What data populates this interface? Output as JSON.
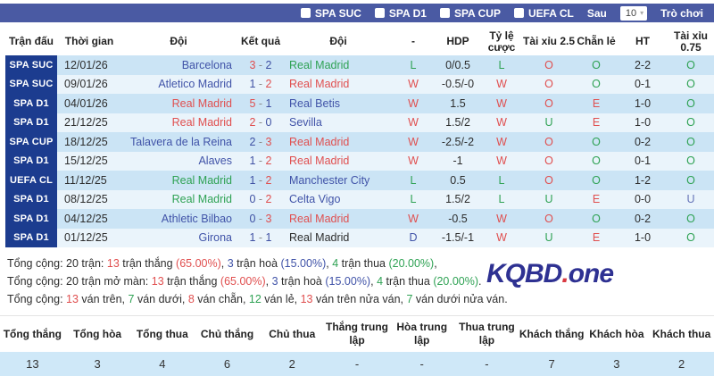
{
  "palette": {
    "red": "#e04f4f",
    "green": "#2fa254",
    "blue": "#4053a8",
    "navy": "#3f51a3",
    "dark": "#2d2d2d",
    "slate": "#6674b8",
    "gray": "#8a8a8a"
  },
  "topbar": {
    "filters": [
      {
        "label": "SPA SUC"
      },
      {
        "label": "SPA D1"
      },
      {
        "label": "SPA CUP"
      },
      {
        "label": "UEFA CL"
      }
    ],
    "after_label": "Sau",
    "dropdown_value": "10",
    "game_label": "Trò chơi"
  },
  "table": {
    "headers": [
      "Trận đấu",
      "Thời gian",
      "Đội",
      "Kết quả",
      "Đội",
      "-",
      "HDP",
      "Tỷ lệ cược",
      "Tài xỉu 2.5",
      "Chẵn lẻ",
      "HT",
      "Tài xỉu 0.75"
    ],
    "rows": [
      {
        "league": "SPA SUC",
        "date": "12/01/26",
        "home": {
          "name": "Barcelona",
          "color": "blue"
        },
        "score": {
          "h": "3",
          "hc": "red",
          "a": "2",
          "ac": "navy"
        },
        "away": {
          "name": "Real Madrid",
          "color": "green"
        },
        "result": {
          "t": "L",
          "c": "green"
        },
        "hdp": "0/0.5",
        "odds": {
          "t": "L",
          "c": "green"
        },
        "ou25": {
          "t": "O",
          "c": "red"
        },
        "oe": {
          "t": "O",
          "c": "green"
        },
        "ht": "2-2",
        "ou075": {
          "t": "O",
          "c": "green"
        }
      },
      {
        "league": "SPA SUC",
        "date": "09/01/26",
        "home": {
          "name": "Atletico Madrid",
          "color": "blue"
        },
        "score": {
          "h": "1",
          "hc": "navy",
          "a": "2",
          "ac": "red"
        },
        "away": {
          "name": "Real Madrid",
          "color": "red"
        },
        "result": {
          "t": "W",
          "c": "red"
        },
        "hdp": "-0.5/-0",
        "odds": {
          "t": "W",
          "c": "red"
        },
        "ou25": {
          "t": "O",
          "c": "red"
        },
        "oe": {
          "t": "O",
          "c": "green"
        },
        "ht": "0-1",
        "ou075": {
          "t": "O",
          "c": "green"
        }
      },
      {
        "league": "SPA D1",
        "date": "04/01/26",
        "home": {
          "name": "Real Madrid",
          "color": "red"
        },
        "score": {
          "h": "5",
          "hc": "red",
          "a": "1",
          "ac": "navy"
        },
        "away": {
          "name": "Real Betis",
          "color": "blue"
        },
        "result": {
          "t": "W",
          "c": "red"
        },
        "hdp": "1.5",
        "odds": {
          "t": "W",
          "c": "red"
        },
        "ou25": {
          "t": "O",
          "c": "red"
        },
        "oe": {
          "t": "E",
          "c": "red"
        },
        "ht": "1-0",
        "ou075": {
          "t": "O",
          "c": "green"
        }
      },
      {
        "league": "SPA D1",
        "date": "21/12/25",
        "home": {
          "name": "Real Madrid",
          "color": "red"
        },
        "score": {
          "h": "2",
          "hc": "red",
          "a": "0",
          "ac": "navy"
        },
        "away": {
          "name": "Sevilla",
          "color": "blue"
        },
        "result": {
          "t": "W",
          "c": "red"
        },
        "hdp": "1.5/2",
        "odds": {
          "t": "W",
          "c": "red"
        },
        "ou25": {
          "t": "U",
          "c": "green"
        },
        "oe": {
          "t": "E",
          "c": "red"
        },
        "ht": "1-0",
        "ou075": {
          "t": "O",
          "c": "green"
        }
      },
      {
        "league": "SPA CUP",
        "date": "18/12/25",
        "home": {
          "name": "Talavera de la Reina",
          "color": "blue"
        },
        "score": {
          "h": "2",
          "hc": "navy",
          "a": "3",
          "ac": "red"
        },
        "away": {
          "name": "Real Madrid",
          "color": "red"
        },
        "result": {
          "t": "W",
          "c": "red"
        },
        "hdp": "-2.5/-2",
        "odds": {
          "t": "W",
          "c": "red"
        },
        "ou25": {
          "t": "O",
          "c": "red"
        },
        "oe": {
          "t": "O",
          "c": "green"
        },
        "ht": "0-2",
        "ou075": {
          "t": "O",
          "c": "green"
        }
      },
      {
        "league": "SPA D1",
        "date": "15/12/25",
        "home": {
          "name": "Alaves",
          "color": "blue"
        },
        "score": {
          "h": "1",
          "hc": "navy",
          "a": "2",
          "ac": "red"
        },
        "away": {
          "name": "Real Madrid",
          "color": "red"
        },
        "result": {
          "t": "W",
          "c": "red"
        },
        "hdp": "-1",
        "odds": {
          "t": "W",
          "c": "red"
        },
        "ou25": {
          "t": "O",
          "c": "red"
        },
        "oe": {
          "t": "O",
          "c": "green"
        },
        "ht": "0-1",
        "ou075": {
          "t": "O",
          "c": "green"
        }
      },
      {
        "league": "UEFA CL",
        "date": "11/12/25",
        "home": {
          "name": "Real Madrid",
          "color": "green"
        },
        "score": {
          "h": "1",
          "hc": "navy",
          "a": "2",
          "ac": "red"
        },
        "away": {
          "name": "Manchester City",
          "color": "blue"
        },
        "result": {
          "t": "L",
          "c": "green"
        },
        "hdp": "0.5",
        "odds": {
          "t": "L",
          "c": "green"
        },
        "ou25": {
          "t": "O",
          "c": "red"
        },
        "oe": {
          "t": "O",
          "c": "green"
        },
        "ht": "1-2",
        "ou075": {
          "t": "O",
          "c": "green"
        }
      },
      {
        "league": "SPA D1",
        "date": "08/12/25",
        "home": {
          "name": "Real Madrid",
          "color": "green"
        },
        "score": {
          "h": "0",
          "hc": "navy",
          "a": "2",
          "ac": "red"
        },
        "away": {
          "name": "Celta Vigo",
          "color": "blue"
        },
        "result": {
          "t": "L",
          "c": "green"
        },
        "hdp": "1.5/2",
        "odds": {
          "t": "L",
          "c": "green"
        },
        "ou25": {
          "t": "U",
          "c": "green"
        },
        "oe": {
          "t": "E",
          "c": "red"
        },
        "ht": "0-0",
        "ou075": {
          "t": "U",
          "c": "slate"
        }
      },
      {
        "league": "SPA D1",
        "date": "04/12/25",
        "home": {
          "name": "Athletic Bilbao",
          "color": "blue"
        },
        "score": {
          "h": "0",
          "hc": "navy",
          "a": "3",
          "ac": "red"
        },
        "away": {
          "name": "Real Madrid",
          "color": "red"
        },
        "result": {
          "t": "W",
          "c": "red"
        },
        "hdp": "-0.5",
        "odds": {
          "t": "W",
          "c": "red"
        },
        "ou25": {
          "t": "O",
          "c": "red"
        },
        "oe": {
          "t": "O",
          "c": "green"
        },
        "ht": "0-2",
        "ou075": {
          "t": "O",
          "c": "green"
        }
      },
      {
        "league": "SPA D1",
        "date": "01/12/25",
        "home": {
          "name": "Girona",
          "color": "blue"
        },
        "score": {
          "h": "1",
          "hc": "navy",
          "a": "1",
          "ac": "navy"
        },
        "away": {
          "name": "Real Madrid",
          "color": "dark"
        },
        "result": {
          "t": "D",
          "c": "blue"
        },
        "hdp": "-1.5/-1",
        "odds": {
          "t": "W",
          "c": "red"
        },
        "ou25": {
          "t": "U",
          "c": "green"
        },
        "oe": {
          "t": "E",
          "c": "red"
        },
        "ht": "1-0",
        "ou075": {
          "t": "O",
          "c": "green"
        }
      }
    ]
  },
  "summary": {
    "lines": [
      {
        "segments": [
          {
            "t": "Tổng cộng: 20 trận: ",
            "c": "dark"
          },
          {
            "t": "13",
            "c": "red"
          },
          {
            "t": " trận thắng ",
            "c": "dark"
          },
          {
            "t": "(65.00%)",
            "c": "red"
          },
          {
            "t": ", ",
            "c": "dark"
          },
          {
            "t": "3",
            "c": "blue"
          },
          {
            "t": " trận hoà ",
            "c": "dark"
          },
          {
            "t": "(15.00%)",
            "c": "blue"
          },
          {
            "t": ", ",
            "c": "dark"
          },
          {
            "t": "4",
            "c": "green"
          },
          {
            "t": " trận thua ",
            "c": "dark"
          },
          {
            "t": "(20.00%)",
            "c": "green"
          },
          {
            "t": ",",
            "c": "dark"
          }
        ]
      },
      {
        "segments": [
          {
            "t": "Tổng cộng: 20 trận mở màn: ",
            "c": "dark"
          },
          {
            "t": "13",
            "c": "red"
          },
          {
            "t": " trận thắng ",
            "c": "dark"
          },
          {
            "t": "(65.00%)",
            "c": "red"
          },
          {
            "t": ", ",
            "c": "dark"
          },
          {
            "t": "3",
            "c": "blue"
          },
          {
            "t": " trận hoà ",
            "c": "dark"
          },
          {
            "t": "(15.00%)",
            "c": "blue"
          },
          {
            "t": ", ",
            "c": "dark"
          },
          {
            "t": "4",
            "c": "green"
          },
          {
            "t": " trận thua ",
            "c": "dark"
          },
          {
            "t": "(20.00%)",
            "c": "green"
          },
          {
            "t": ".",
            "c": "dark"
          }
        ]
      },
      {
        "segments": [
          {
            "t": "Tổng cộng: ",
            "c": "dark"
          },
          {
            "t": "13",
            "c": "red"
          },
          {
            "t": " ván trên, ",
            "c": "dark"
          },
          {
            "t": "7",
            "c": "green"
          },
          {
            "t": " ván dưới, ",
            "c": "dark"
          },
          {
            "t": "8",
            "c": "red"
          },
          {
            "t": " ván chẵn, ",
            "c": "dark"
          },
          {
            "t": "12",
            "c": "green"
          },
          {
            "t": " ván lẻ, ",
            "c": "dark"
          },
          {
            "t": "13",
            "c": "red"
          },
          {
            "t": " ván trên nửa ván, ",
            "c": "dark"
          },
          {
            "t": "7",
            "c": "green"
          },
          {
            "t": " ván dưới nửa ván.",
            "c": "dark"
          }
        ]
      }
    ]
  },
  "logo": {
    "part1": "KQBD",
    "dot": ".",
    "part2": "one",
    "dot_color": "#d93840"
  },
  "bottom_table": {
    "headers": [
      "Tổng thắng",
      "Tổng hòa",
      "Tổng thua",
      "Chủ thắng",
      "Chủ thua",
      "Thắng trung lập",
      "Hòa trung lập",
      "Thua trung lập",
      "Khách thắng",
      "Khách hòa",
      "Khách thua"
    ],
    "values": [
      "13",
      "3",
      "4",
      "6",
      "2",
      "-",
      "-",
      "-",
      "7",
      "3",
      "2"
    ]
  }
}
